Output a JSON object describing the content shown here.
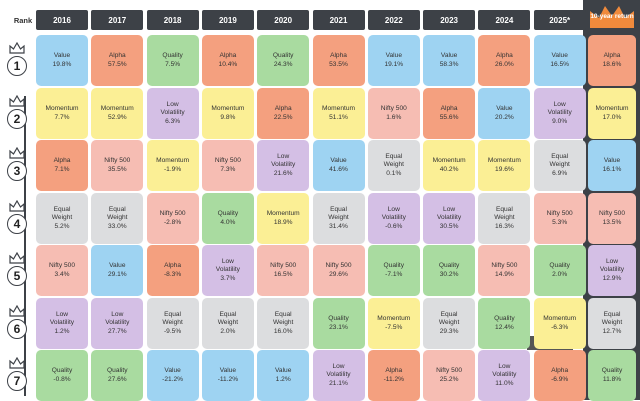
{
  "rank_label": "Rank",
  "ten_year_label": "10-year return",
  "watermark": "BCCL",
  "colors": {
    "Value": "#9ed3f2",
    "Alpha": "#f4a07f",
    "Quality": "#a9dba0",
    "Momentum": "#fbef95",
    "Low Volatility": "#d4bfe5",
    "Nifty 500": "#f6bdb3",
    "Equal Weight": "#dcdddf",
    "header": "#3d4147"
  },
  "chart_data": {
    "type": "table",
    "columns": [
      "2016",
      "2017",
      "2018",
      "2019",
      "2020",
      "2021",
      "2022",
      "2023",
      "2024",
      "2025*"
    ],
    "ranks": [
      1,
      2,
      3,
      4,
      5,
      6,
      7
    ],
    "cells": [
      [
        [
          "Value",
          "19.8%"
        ],
        [
          "Alpha",
          "57.5%"
        ],
        [
          "Quality",
          "7.5%"
        ],
        [
          "Alpha",
          "10.4%"
        ],
        [
          "Quality",
          "24.3%"
        ],
        [
          "Alpha",
          "53.5%"
        ],
        [
          "Value",
          "19.1%"
        ],
        [
          "Value",
          "58.3%"
        ],
        [
          "Alpha",
          "26.0%"
        ],
        [
          "Value",
          "16.5%"
        ]
      ],
      [
        [
          "Momentum",
          "7.7%"
        ],
        [
          "Momentum",
          "52.9%"
        ],
        [
          "Low Volatility",
          "6.3%"
        ],
        [
          "Momentum",
          "9.8%"
        ],
        [
          "Alpha",
          "22.5%"
        ],
        [
          "Momentum",
          "51.1%"
        ],
        [
          "Nifty 500",
          "1.6%"
        ],
        [
          "Alpha",
          "55.6%"
        ],
        [
          "Value",
          "20.2%"
        ],
        [
          "Low Volatility",
          "9.0%"
        ]
      ],
      [
        [
          "Alpha",
          "7.1%"
        ],
        [
          "Nifty 500",
          "35.5%"
        ],
        [
          "Momentum",
          "-1.9%"
        ],
        [
          "Nifty 500",
          "7.3%"
        ],
        [
          "Low Volatility",
          "21.6%"
        ],
        [
          "Value",
          "41.6%"
        ],
        [
          "Equal Weight",
          "0.1%"
        ],
        [
          "Momentum",
          "40.2%"
        ],
        [
          "Momentum",
          "19.6%"
        ],
        [
          "Equal Weight",
          "6.9%"
        ]
      ],
      [
        [
          "Equal Weight",
          "5.2%"
        ],
        [
          "Equal Weight",
          "33.0%"
        ],
        [
          "Nifty 500",
          "-2.8%"
        ],
        [
          "Quality",
          "4.0%"
        ],
        [
          "Momentum",
          "18.9%"
        ],
        [
          "Equal Weight",
          "31.4%"
        ],
        [
          "Low Volatility",
          "-0.6%"
        ],
        [
          "Low Volatility",
          "30.5%"
        ],
        [
          "Equal Weight",
          "16.3%"
        ],
        [
          "Nifty 500",
          "5.3%"
        ]
      ],
      [
        [
          "Nifty 500",
          "3.4%"
        ],
        [
          "Value",
          "29.1%"
        ],
        [
          "Alpha",
          "-8.3%"
        ],
        [
          "Low Volatility",
          "3.7%"
        ],
        [
          "Nifty 500",
          "16.5%"
        ],
        [
          "Nifty 500",
          "29.6%"
        ],
        [
          "Quality",
          "-7.1%"
        ],
        [
          "Quality",
          "30.2%"
        ],
        [
          "Nifty 500",
          "14.9%"
        ],
        [
          "Quality",
          "2.0%"
        ]
      ],
      [
        [
          "Low Volatility",
          "1.2%"
        ],
        [
          "Low Volatility",
          "27.7%"
        ],
        [
          "Equal Weight",
          "-9.5%"
        ],
        [
          "Equal Weight",
          "2.0%"
        ],
        [
          "Equal Weight",
          "16.0%"
        ],
        [
          "Quality",
          "23.1%"
        ],
        [
          "Momentum",
          "-7.5%"
        ],
        [
          "Equal Weight",
          "29.3%"
        ],
        [
          "Quality",
          "12.4%"
        ],
        [
          "Momentum",
          "-6.3%"
        ]
      ],
      [
        [
          "Quality",
          "-0.8%"
        ],
        [
          "Quality",
          "27.6%"
        ],
        [
          "Value",
          "-21.2%"
        ],
        [
          "Value",
          "-11.2%"
        ],
        [
          "Value",
          "1.2%"
        ],
        [
          "Low Volatility",
          "21.1%"
        ],
        [
          "Alpha",
          "-11.2%"
        ],
        [
          "Nifty 500",
          "25.2%"
        ],
        [
          "Low Volatility",
          "11.0%"
        ],
        [
          "Alpha",
          "-6.9%"
        ]
      ]
    ],
    "ten_year": [
      [
        "Alpha",
        "18.6%"
      ],
      [
        "Momentum",
        "17.0%"
      ],
      [
        "Value",
        "16.1%"
      ],
      [
        "Nifty 500",
        "13.5%"
      ],
      [
        "Low Volatility",
        "12.9%"
      ],
      [
        "Equal Weight",
        "12.7%"
      ],
      [
        "Quality",
        "11.8%"
      ]
    ]
  }
}
